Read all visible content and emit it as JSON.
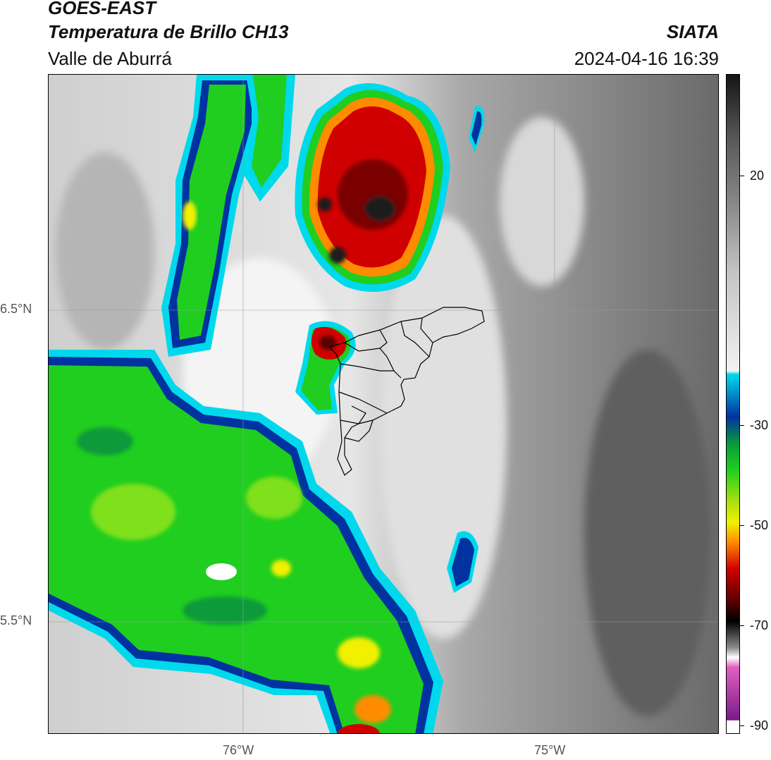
{
  "header": {
    "satellite": "GOES-EAST",
    "product": "Temperatura de Brillo CH13",
    "region": "Valle de Aburrá",
    "agency": "SIATA",
    "datetime": "2024-04-16 16:39"
  },
  "map": {
    "lat_ticks": [
      "6.5°N",
      "5.5°N"
    ],
    "lon_ticks": [
      "76°W",
      "75°W"
    ]
  },
  "colorbar": {
    "ticks": [
      "20",
      "-30",
      "-50",
      "-70",
      "-90"
    ],
    "colors": {
      "warm_dark": "#1a1a1a",
      "warm_mid": "#8a8a8a",
      "warm_light": "#f2f2f2",
      "cyan": "#00d8ec",
      "blue": "#0033a0",
      "green": "#1fce1f",
      "yellow": "#f0f000",
      "orange": "#ff8c00",
      "red": "#d10000",
      "dark_red": "#5a0000",
      "black": "#000000",
      "pink": "#e060c0",
      "purple": "#7a1a8a"
    }
  }
}
